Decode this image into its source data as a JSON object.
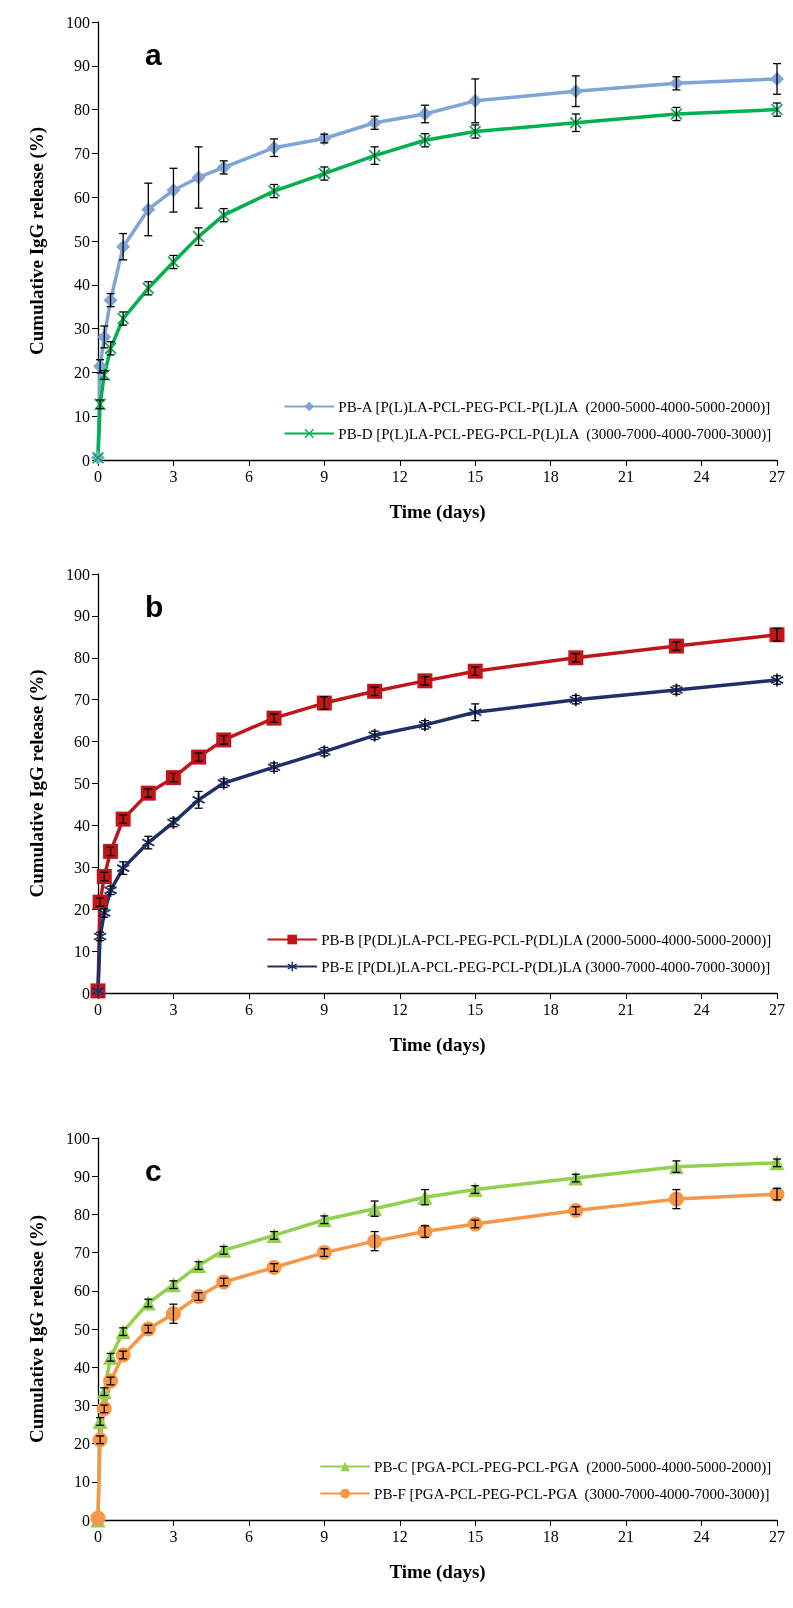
{
  "chart_data": [
    {
      "type": "line",
      "title": "a",
      "xlabel": "Time (days)",
      "ylabel": "Cumulative IgG release (%)",
      "x": [
        0,
        0.083,
        0.25,
        0.5,
        1,
        2,
        3,
        4,
        5,
        7,
        9,
        11,
        13,
        15,
        19,
        23,
        27
      ],
      "xlim": [
        0,
        27
      ],
      "xticks": [
        0,
        3,
        6,
        9,
        12,
        15,
        18,
        21,
        24,
        27
      ],
      "ylim": [
        0,
        100
      ],
      "yticks": [
        0,
        10,
        20,
        30,
        40,
        50,
        60,
        70,
        80,
        90,
        100
      ],
      "grid": false,
      "legend": "bottom right",
      "line_style": "solid",
      "series": [
        {
          "name": "PB-A [P(L)LA-PCL-PEG-PCL-P(L)LA  (2000-5000-4000-5000-2000)]",
          "color": "#7fa5d6",
          "marker": "diamond",
          "values": [
            0.5,
            21.4,
            28.1,
            36.5,
            48.7,
            57.2,
            61.6,
            64.5,
            66.8,
            71.3,
            73.4,
            77,
            79,
            82,
            84.2,
            86,
            87
          ],
          "errors": [
            null,
            1.5,
            2.5,
            1.5,
            3,
            6,
            5,
            7,
            1.5,
            2,
            1,
            1.5,
            2,
            5,
            3.5,
            1.5,
            3.5
          ]
        },
        {
          "name": "PB-D [P(L)LA-PCL-PEG-PCL-P(L)LA  (3000-7000-4000-7000-3000)]",
          "color": "#00b050",
          "marker": "cross",
          "values": [
            0.5,
            12.7,
            19.4,
            25.5,
            32.3,
            39.2,
            45.2,
            51,
            55.9,
            61.4,
            65.4,
            69.5,
            73,
            75,
            77,
            79,
            80
          ],
          "errors": [
            null,
            1,
            1,
            1.5,
            1.5,
            1.5,
            1.5,
            2,
            1.5,
            1.5,
            1.5,
            2,
            1.5,
            1.5,
            2,
            1.5,
            1.5
          ]
        }
      ]
    },
    {
      "type": "line",
      "title": "b",
      "xlabel": "Time (days)",
      "ylabel": "Cumulative IgG release (%)",
      "x": [
        0,
        0.083,
        0.25,
        0.5,
        1,
        2,
        3,
        4,
        5,
        7,
        9,
        11,
        13,
        15,
        19,
        23,
        27
      ],
      "xlim": [
        0,
        27
      ],
      "xticks": [
        0,
        3,
        6,
        9,
        12,
        15,
        18,
        21,
        24,
        27
      ],
      "ylim": [
        0,
        100
      ],
      "yticks": [
        0,
        10,
        20,
        30,
        40,
        50,
        60,
        70,
        80,
        90,
        100
      ],
      "grid": false,
      "legend": "bottom right",
      "line_style": "solid",
      "series": [
        {
          "name": "PB-B [P(DL)LA-PCL-PEG-PCL-P(DL)LA (2000-5000-4000-5000-2000)]",
          "color": "#c0161a",
          "marker": "square",
          "values": [
            0.5,
            21.7,
            27.8,
            33.8,
            41.5,
            47.7,
            51.4,
            56.3,
            60.4,
            65.6,
            69.2,
            72,
            74.5,
            76.8,
            80,
            82.8,
            85.5
          ],
          "errors": [
            null,
            1,
            1,
            1,
            1,
            1,
            1,
            1,
            1,
            1,
            1.5,
            1,
            1,
            1,
            1,
            1,
            1.5
          ]
        },
        {
          "name": "PB-E [P(DL)LA-PCL-PEG-PCL-P(DL)LA (3000-7000-4000-7000-3000)]",
          "color": "#1f2f6a",
          "marker": "star",
          "values": [
            0.5,
            13.5,
            19.1,
            24.5,
            29.8,
            35.9,
            40.7,
            46.1,
            50.1,
            53.9,
            57.6,
            61.5,
            64,
            67,
            70,
            72.3,
            74.7
          ],
          "errors": [
            null,
            1,
            1,
            1,
            1.5,
            1.5,
            1,
            2,
            1,
            1,
            1,
            1,
            1,
            2,
            1,
            1,
            1
          ]
        }
      ]
    },
    {
      "type": "line",
      "title": "c",
      "xlabel": "Time (days)",
      "ylabel": "Cumulative IgG release (%)",
      "x": [
        0,
        0.083,
        0.25,
        0.5,
        1,
        2,
        3,
        4,
        5,
        7,
        9,
        11,
        13,
        15,
        19,
        23,
        27
      ],
      "xlim": [
        0,
        27
      ],
      "xticks": [
        0,
        3,
        6,
        9,
        12,
        15,
        18,
        21,
        24,
        27
      ],
      "ylim": [
        0,
        100
      ],
      "yticks": [
        0,
        10,
        20,
        30,
        40,
        50,
        60,
        70,
        80,
        90,
        100
      ],
      "grid": false,
      "legend": "bottom right",
      "line_style": "solid",
      "series": [
        {
          "name": "PB-C [PGA-PCL-PEG-PCL-PGA  (2000-5000-4000-5000-2000)]",
          "color": "#92d050",
          "marker": "triangle",
          "values": [
            0,
            25.8,
            33.6,
            42.6,
            49.3,
            56.8,
            61.6,
            66.6,
            70.6,
            74.5,
            78.6,
            81.5,
            84.5,
            86.5,
            89.5,
            92.5,
            93.5
          ],
          "errors": [
            null,
            1,
            1,
            1,
            1,
            1,
            1,
            1,
            1,
            1,
            1,
            2,
            2,
            1,
            1,
            1.5,
            1
          ]
        },
        {
          "name": "PB-F [PGA-PCL-PEG-PCL-PGA  (3000-7000-4000-7000-3000)]",
          "color": "#f79646",
          "marker": "circle",
          "values": [
            0.5,
            21,
            29.1,
            36.4,
            43.2,
            50,
            54,
            58.5,
            62.3,
            66.1,
            70,
            73,
            75.5,
            77.5,
            81,
            84,
            85.3
          ],
          "errors": [
            null,
            1,
            1,
            1,
            1,
            1,
            2.5,
            1,
            1,
            1,
            1,
            2.5,
            1.5,
            1,
            1,
            2.5,
            1.5
          ]
        }
      ]
    }
  ]
}
